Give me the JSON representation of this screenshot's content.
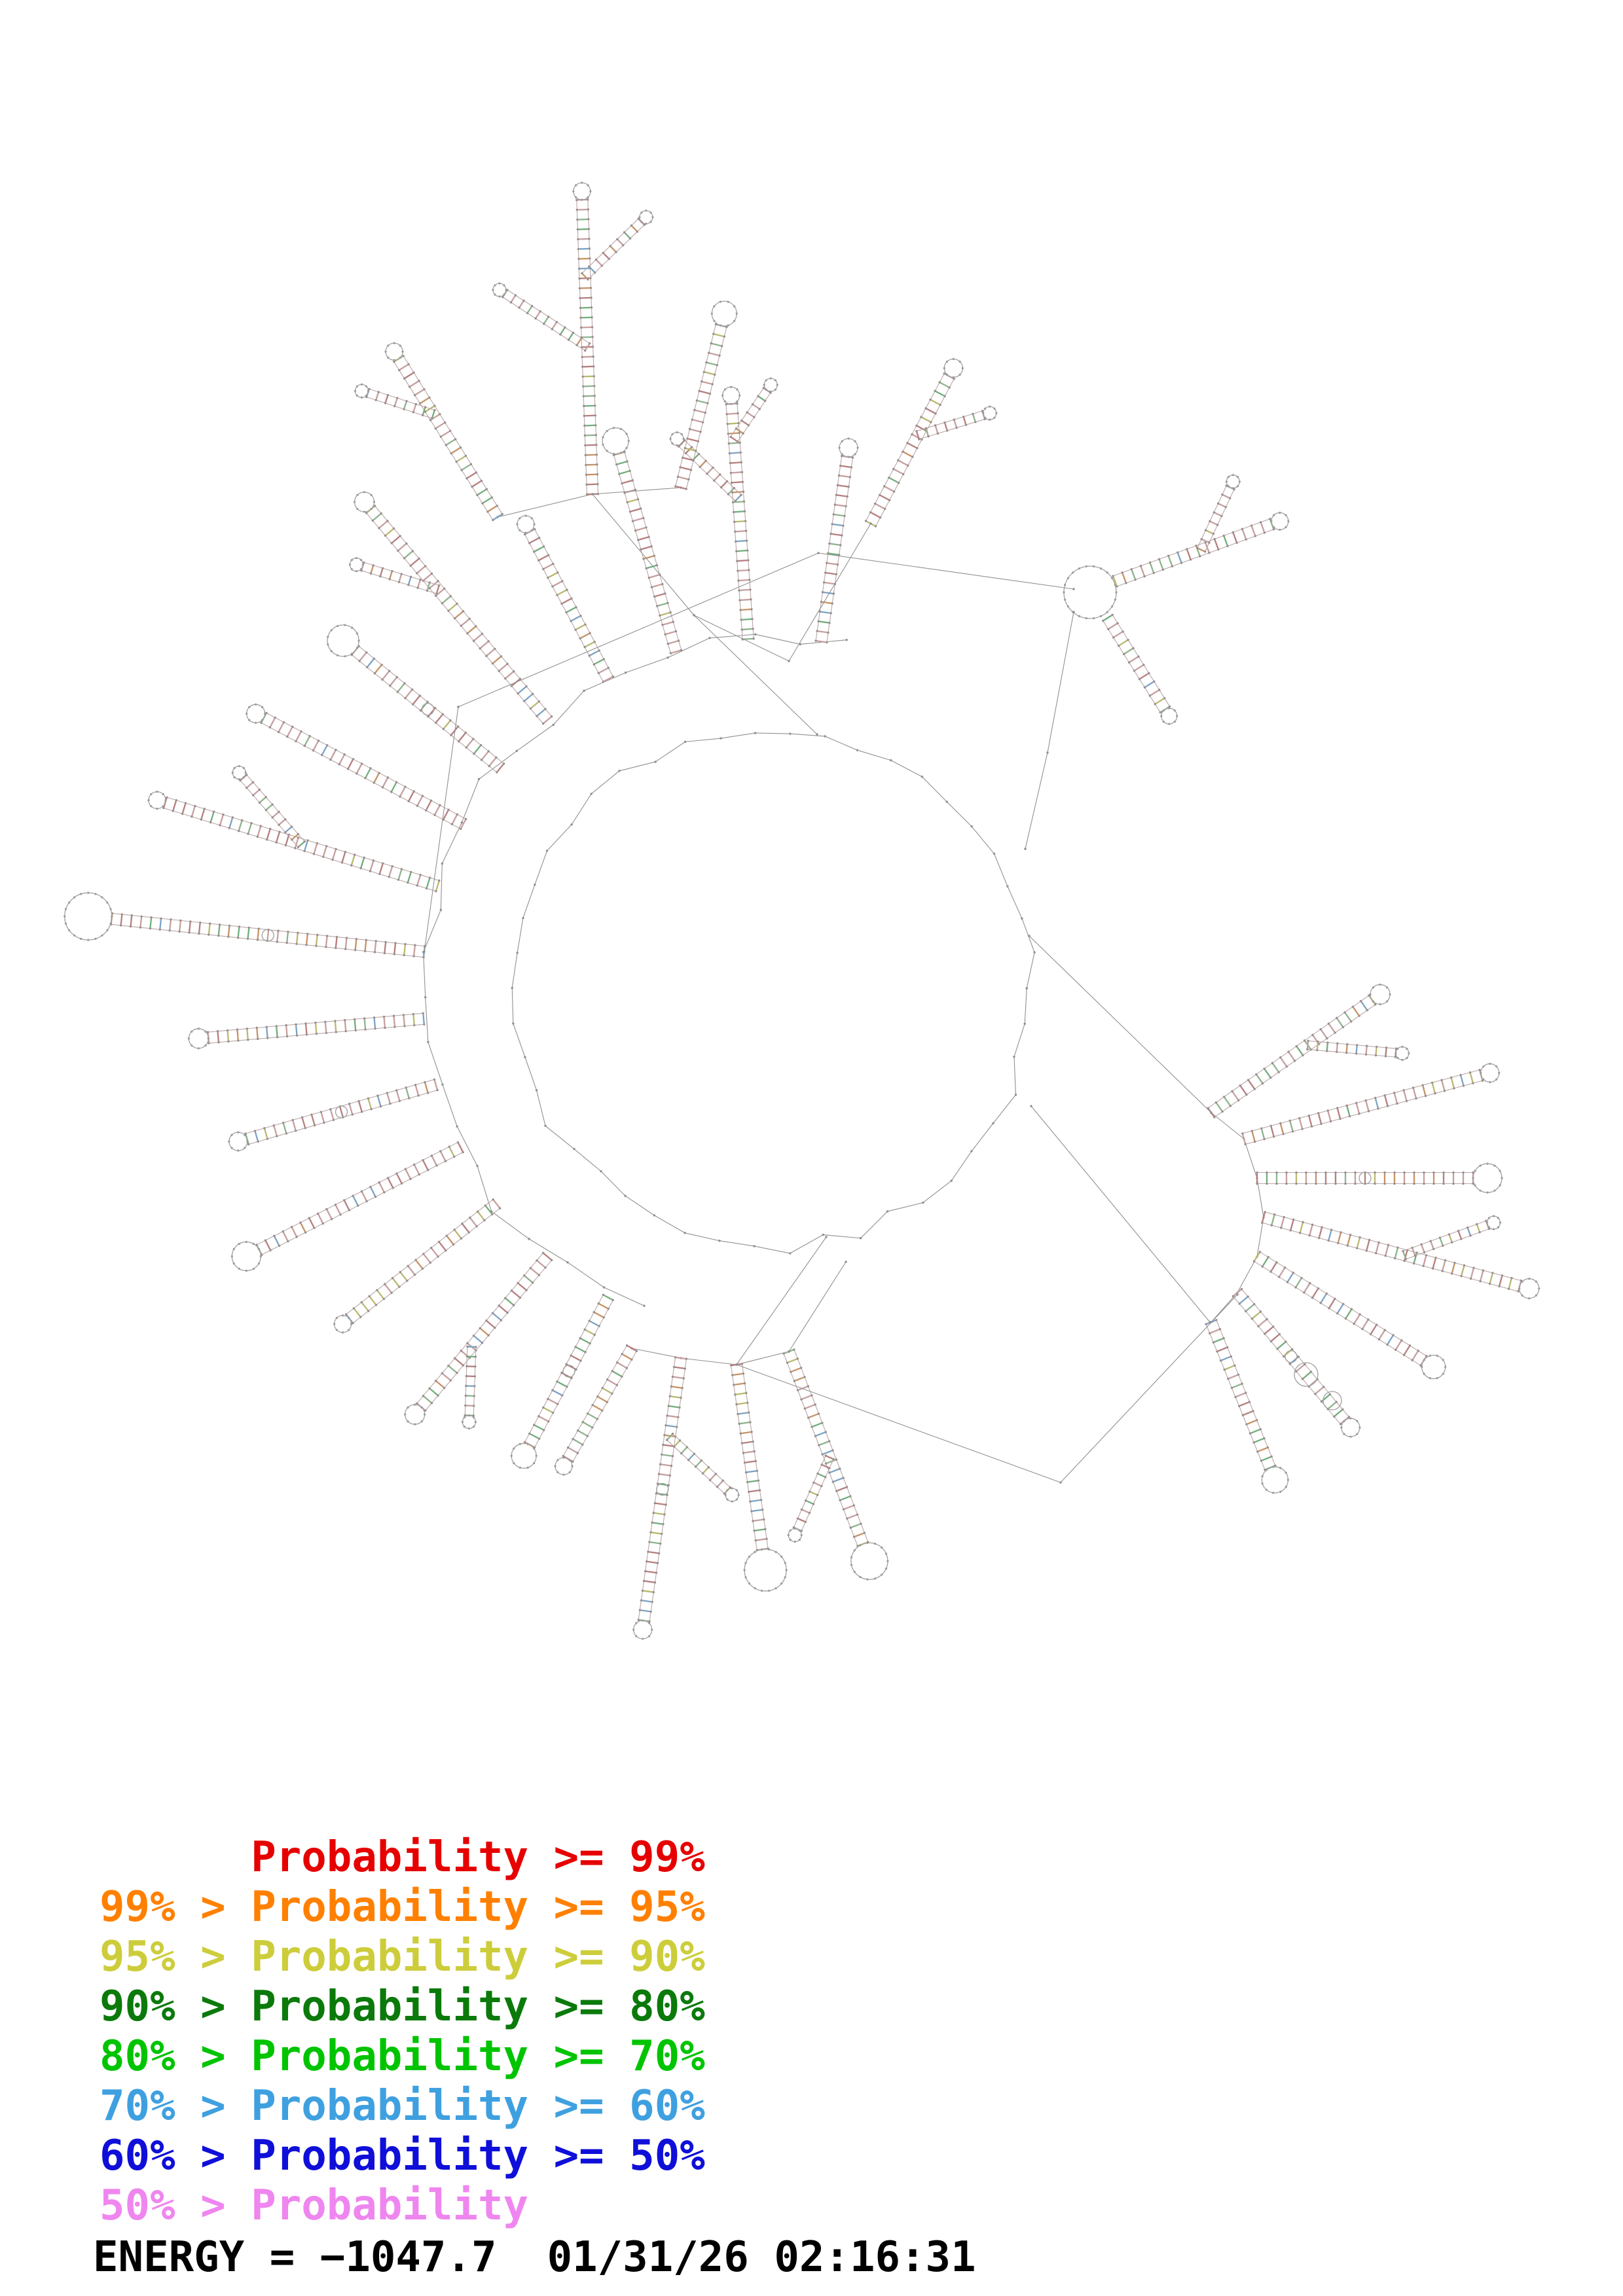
{
  "legend": {
    "items": [
      {
        "text": "      Probability >= 99%",
        "color": "#e60000"
      },
      {
        "text": "99% > Probability >= 95%",
        "color": "#ff8000"
      },
      {
        "text": "95% > Probability >= 90%",
        "color": "#cdcd3c"
      },
      {
        "text": "90% > Probability >= 80%",
        "color": "#0b7a0b"
      },
      {
        "text": "80% > Probability >= 70%",
        "color": "#00c400"
      },
      {
        "text": "70% > Probability >= 60%",
        "color": "#3fa0e0"
      },
      {
        "text": "60% > Probability >= 50%",
        "color": "#0f0fd9"
      },
      {
        "text": "50% > Probability",
        "color": "#ef86ef"
      }
    ]
  },
  "footer": {
    "energy_line": "ENERGY = −1047.7  01/31/26 02:16:31"
  }
}
